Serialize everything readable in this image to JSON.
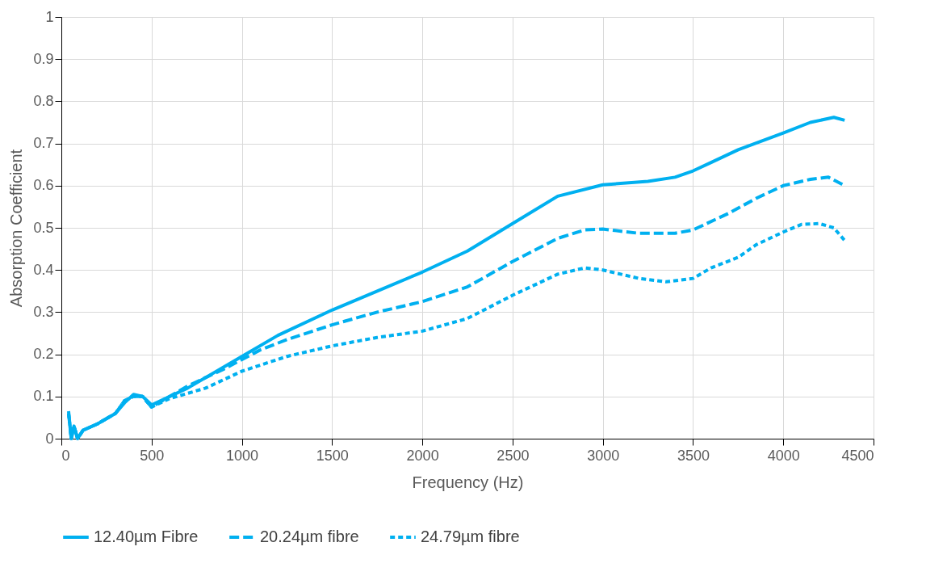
{
  "chart_data": {
    "type": "line",
    "xlabel": "Frequency (Hz)",
    "ylabel": "Absorption Coefficient",
    "xlim": [
      0,
      4500
    ],
    "ylim": [
      0,
      1
    ],
    "xticks": [
      0,
      500,
      1000,
      1500,
      2000,
      2500,
      3000,
      3500,
      4000,
      4500
    ],
    "yticks": [
      0,
      0.1,
      0.2,
      0.3,
      0.4,
      0.5,
      0.6,
      0.7,
      0.8,
      0.9,
      1
    ],
    "grid": true,
    "legend": "bottom",
    "marker": "none",
    "series": [
      {
        "name": "12.40µm Fibre",
        "color": "#00b0f0",
        "line_style": "solid",
        "x": [
          40,
          55,
          70,
          90,
          120,
          200,
          300,
          350,
          400,
          450,
          500,
          550,
          700,
          800,
          1000,
          1200,
          1500,
          1750,
          2000,
          2250,
          2500,
          2750,
          3000,
          3250,
          3400,
          3500,
          3600,
          3750,
          4000,
          4150,
          4280,
          4340
        ],
        "values": [
          0.065,
          0.0,
          0.03,
          0.0,
          0.02,
          0.035,
          0.06,
          0.085,
          0.105,
          0.1,
          0.08,
          0.09,
          0.12,
          0.145,
          0.195,
          0.245,
          0.305,
          0.35,
          0.395,
          0.445,
          0.51,
          0.575,
          0.602,
          0.61,
          0.62,
          0.635,
          0.655,
          0.685,
          0.725,
          0.75,
          0.762,
          0.755
        ]
      },
      {
        "name": "20.24µm fibre",
        "color": "#00b0f0",
        "line_style": "dashed",
        "x": [
          40,
          55,
          70,
          90,
          120,
          200,
          300,
          350,
          400,
          450,
          500,
          600,
          700,
          900,
          1100,
          1250,
          1500,
          1750,
          2000,
          2250,
          2500,
          2750,
          2900,
          3000,
          3200,
          3400,
          3500,
          3700,
          3850,
          4000,
          4150,
          4250,
          4340
        ],
        "values": [
          0.06,
          0.0,
          0.03,
          0.0,
          0.02,
          0.035,
          0.06,
          0.09,
          0.1,
          0.1,
          0.075,
          0.1,
          0.125,
          0.165,
          0.21,
          0.235,
          0.27,
          0.3,
          0.325,
          0.36,
          0.42,
          0.475,
          0.495,
          0.497,
          0.487,
          0.487,
          0.495,
          0.535,
          0.57,
          0.6,
          0.615,
          0.62,
          0.6
        ]
      },
      {
        "name": "24.79µm fibre",
        "color": "#00b0f0",
        "line_style": "dotted",
        "x": [
          40,
          55,
          70,
          90,
          120,
          200,
          300,
          350,
          400,
          450,
          500,
          600,
          800,
          1000,
          1250,
          1500,
          1750,
          2000,
          2250,
          2500,
          2750,
          2900,
          3000,
          3200,
          3350,
          3500,
          3600,
          3750,
          3850,
          4000,
          4100,
          4200,
          4280,
          4340
        ],
        "values": [
          0.06,
          0.0,
          0.03,
          0.0,
          0.02,
          0.035,
          0.06,
          0.09,
          0.1,
          0.1,
          0.075,
          0.095,
          0.12,
          0.16,
          0.195,
          0.22,
          0.24,
          0.255,
          0.285,
          0.34,
          0.39,
          0.405,
          0.4,
          0.38,
          0.372,
          0.38,
          0.405,
          0.43,
          0.46,
          0.49,
          0.508,
          0.51,
          0.5,
          0.47
        ]
      }
    ]
  }
}
